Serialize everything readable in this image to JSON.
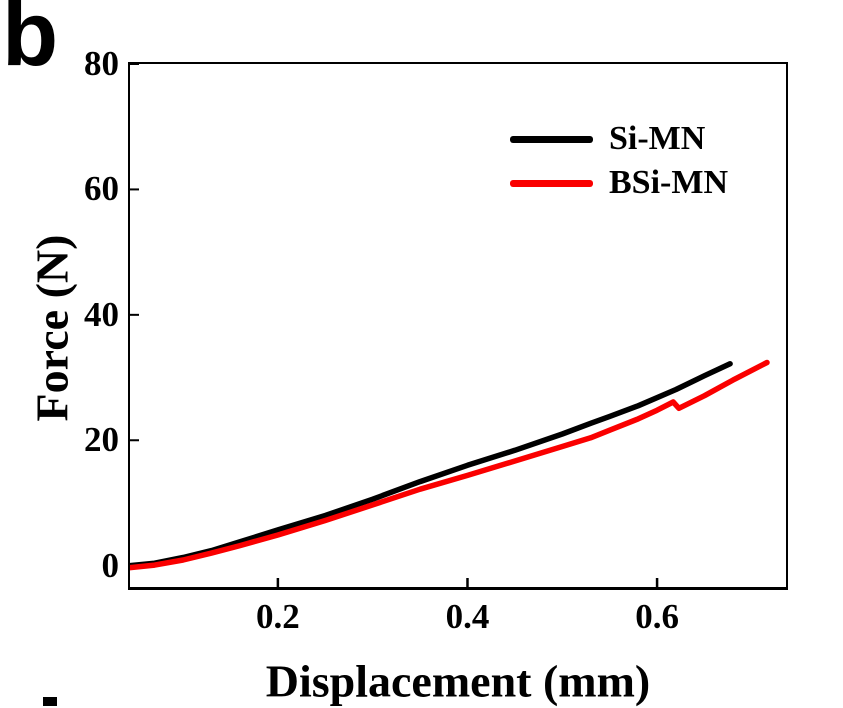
{
  "panel_label": "b",
  "colors": {
    "series_black": "#000000",
    "series_red": "#fa0000",
    "axis": "#000000",
    "background": "#ffffff"
  },
  "chart_data": {
    "type": "line",
    "title": "",
    "xlabel": "Displacement (mm)",
    "ylabel": "Force (N)",
    "xlim": [
      0.044,
      0.736
    ],
    "ylim": [
      -3.4,
      80
    ],
    "xticks": [
      0.2,
      0.4,
      0.6
    ],
    "yticks": [
      0,
      20,
      40,
      60,
      80
    ],
    "xtick_labels": [
      "0.2",
      "0.4",
      "0.6"
    ],
    "ytick_labels": [
      "0",
      "20",
      "40",
      "60",
      "80"
    ],
    "grid": false,
    "legend_position": "upper-right-inside",
    "series": [
      {
        "name": "Si-MN",
        "color": "#000000",
        "points": [
          [
            0.044,
            0.0
          ],
          [
            0.07,
            0.4
          ],
          [
            0.1,
            1.3
          ],
          [
            0.13,
            2.4
          ],
          [
            0.16,
            3.8
          ],
          [
            0.2,
            5.7
          ],
          [
            0.25,
            8.0
          ],
          [
            0.3,
            10.6
          ],
          [
            0.35,
            13.4
          ],
          [
            0.4,
            16.0
          ],
          [
            0.45,
            18.4
          ],
          [
            0.5,
            21.0
          ],
          [
            0.53,
            22.7
          ],
          [
            0.55,
            23.8
          ],
          [
            0.58,
            25.5
          ],
          [
            0.62,
            28.1
          ],
          [
            0.65,
            30.3
          ],
          [
            0.677,
            32.2
          ]
        ]
      },
      {
        "name": "BSi-MN",
        "color": "#fa0000",
        "points": [
          [
            0.044,
            -0.3
          ],
          [
            0.07,
            0.1
          ],
          [
            0.1,
            0.9
          ],
          [
            0.13,
            2.0
          ],
          [
            0.16,
            3.2
          ],
          [
            0.2,
            4.9
          ],
          [
            0.25,
            7.2
          ],
          [
            0.3,
            9.7
          ],
          [
            0.35,
            12.2
          ],
          [
            0.4,
            14.4
          ],
          [
            0.45,
            16.7
          ],
          [
            0.5,
            19.0
          ],
          [
            0.53,
            20.4
          ],
          [
            0.55,
            21.6
          ],
          [
            0.58,
            23.4
          ],
          [
            0.6,
            24.8
          ],
          [
            0.617,
            26.1
          ],
          [
            0.623,
            25.1
          ],
          [
            0.65,
            27.1
          ],
          [
            0.68,
            29.6
          ],
          [
            0.716,
            32.4
          ]
        ]
      }
    ]
  }
}
